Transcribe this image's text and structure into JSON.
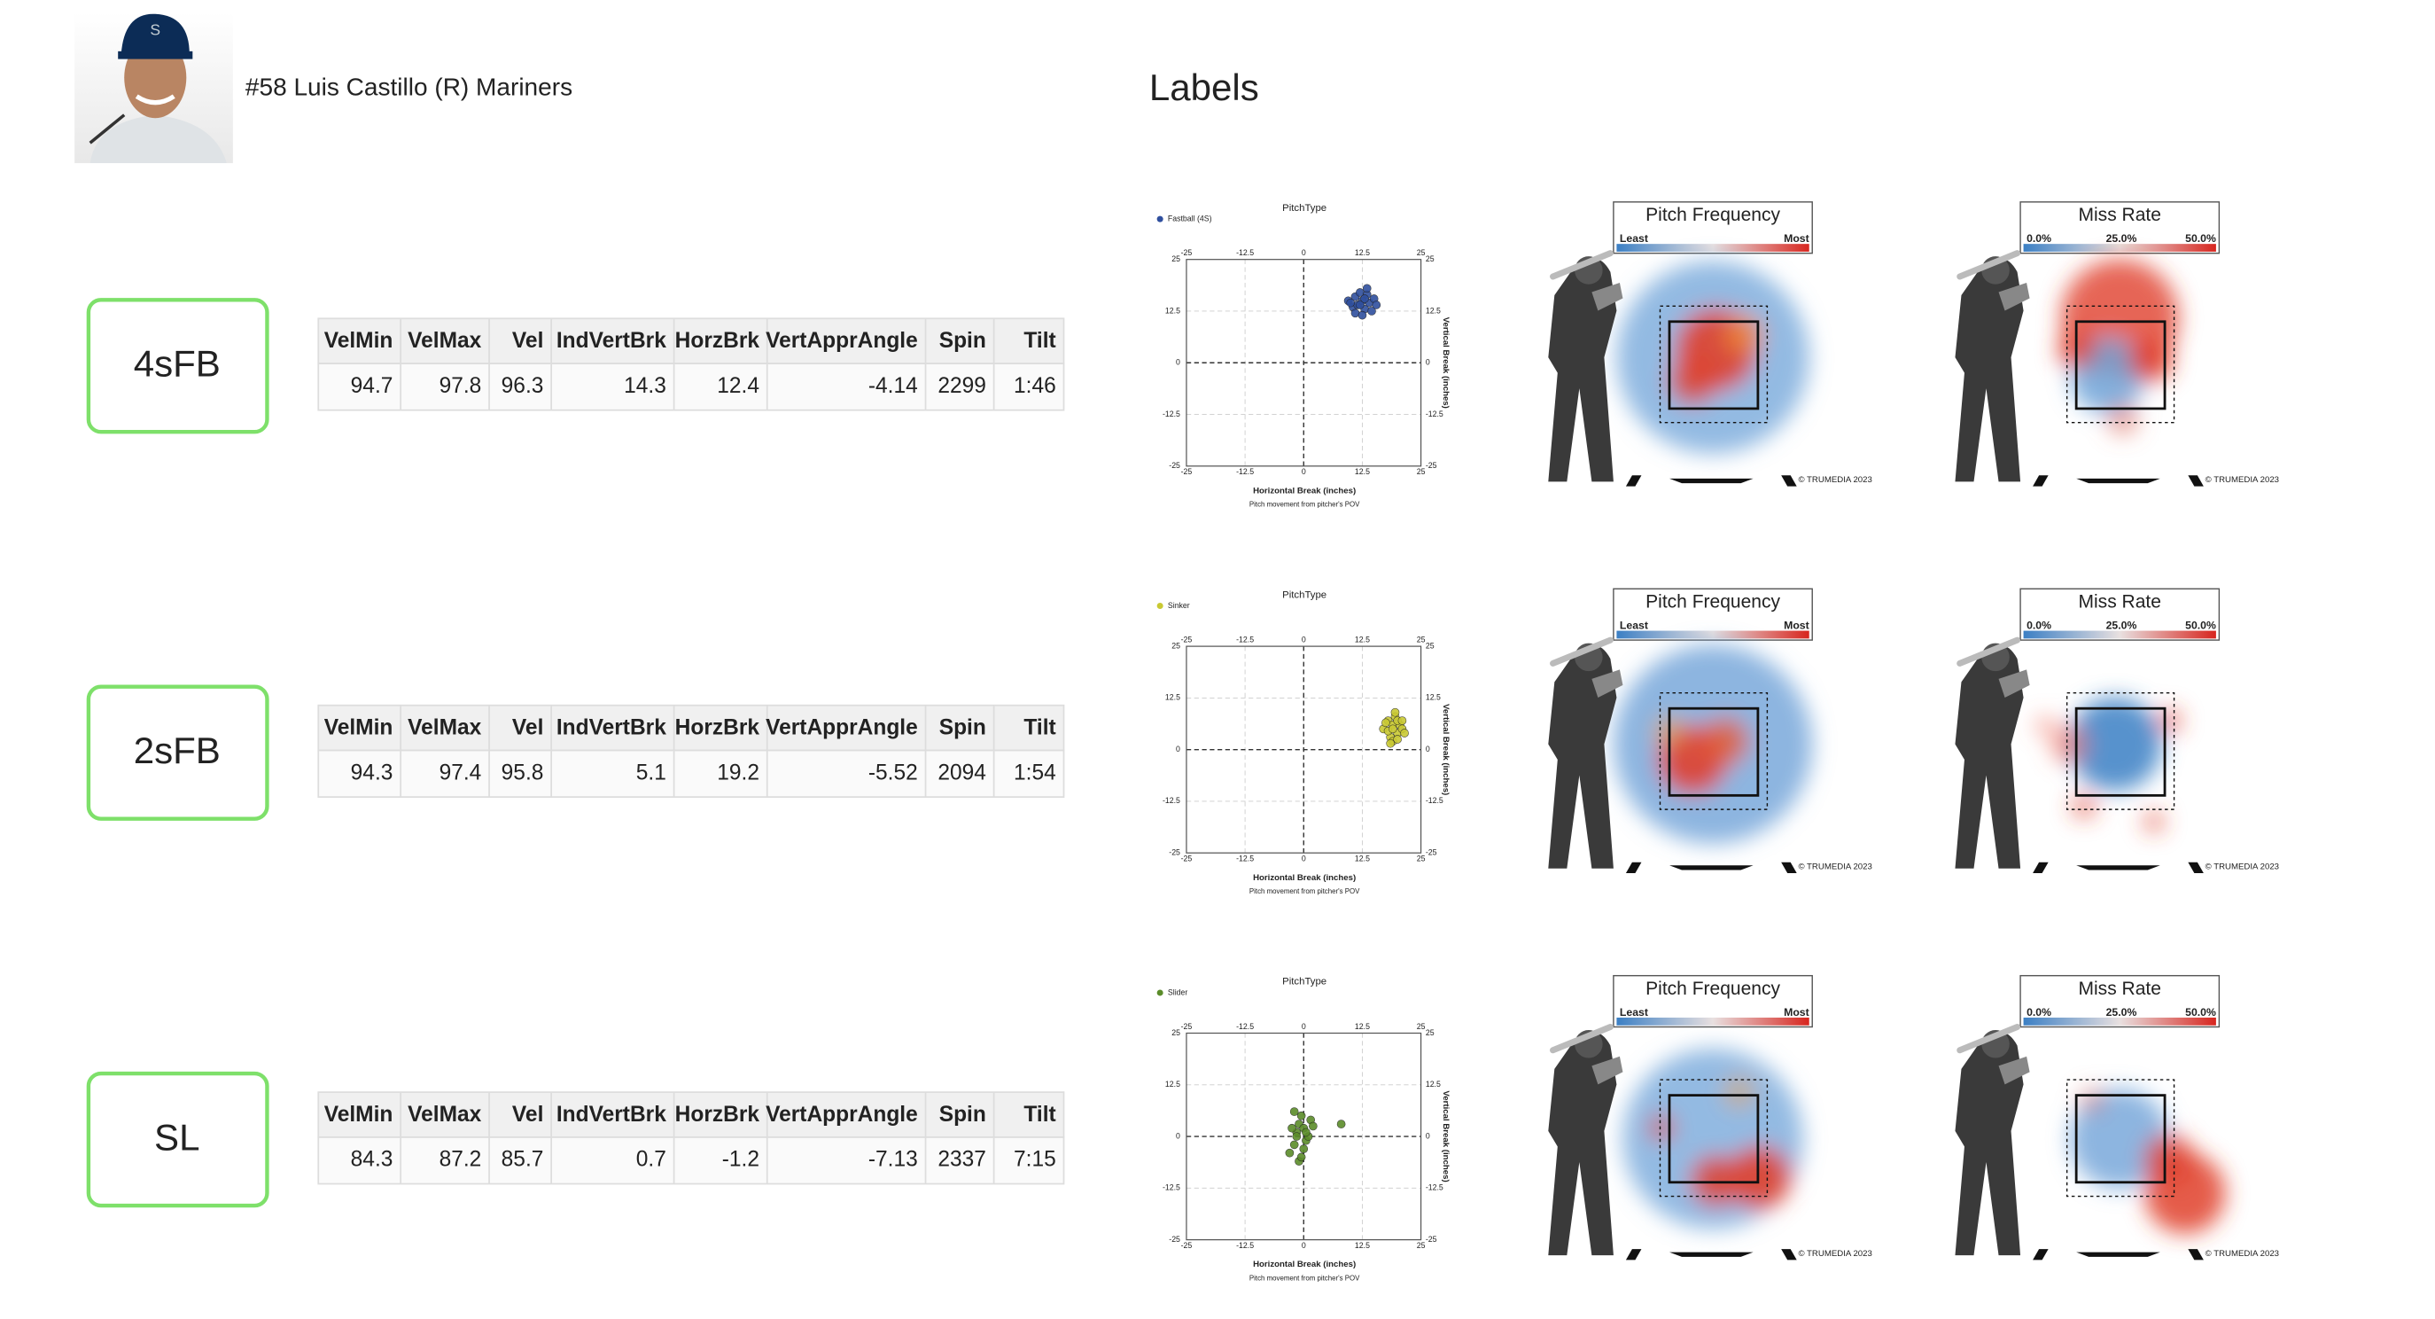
{
  "header": {
    "player": "#58 Luis Castillo (R) Mariners",
    "section_title": "Labels"
  },
  "table_columns": [
    "VelMin",
    "VelMax",
    "Vel",
    "IndVertBrk",
    "HorzBrk",
    "VertApprAngle",
    "Spin",
    "Tilt"
  ],
  "scatter_axes": {
    "title": "PitchType",
    "xlabel": "Horizontal Break (inches)",
    "ylabel": "Vertical Break (inches)",
    "note": "Pitch movement from pitcher's POV",
    "xlim": [
      -25,
      25
    ],
    "ylim": [
      -25,
      25
    ],
    "xticks": [
      -25,
      -12.5,
      0,
      12.5,
      25
    ],
    "yticks": [
      -25,
      -12.5,
      0,
      12.5,
      25
    ]
  },
  "heatmaps": [
    {
      "title": "Pitch Frequency",
      "scale_labels": [
        "Least",
        "Most"
      ]
    },
    {
      "title": "Miss Rate",
      "scale_labels": [
        "0.0%",
        "25.0%",
        "50.0%"
      ]
    }
  ],
  "copyright": "© TRUMEDIA 2023",
  "rows": [
    {
      "label": "4sFB",
      "values": [
        94.7,
        97.8,
        96.3,
        14.3,
        12.4,
        -4.14,
        2299,
        "1:46"
      ],
      "legend": "Fastball (4S)",
      "color": "#2f4f9e",
      "x": [
        9.5,
        10.5,
        11,
        11.5,
        12,
        12.5,
        13,
        13.5,
        14,
        14.5,
        15,
        11,
        12.5,
        13.5,
        10,
        15.5,
        12,
        13
      ],
      "y": [
        15,
        13.5,
        16,
        14,
        17,
        15,
        13,
        16.5,
        14.5,
        12.5,
        15.5,
        12,
        11.5,
        18,
        14.5,
        14,
        14,
        15.5
      ]
    },
    {
      "label": "2sFB",
      "values": [
        94.3,
        97.4,
        95.8,
        5.1,
        19.2,
        -5.52,
        2094,
        "1:54"
      ],
      "legend": "Sinker",
      "color": "#c9c933",
      "x": [
        17,
        18,
        18.5,
        19,
        19.5,
        20,
        20.5,
        21,
        18,
        19,
        20,
        21.5,
        17.5,
        19.5,
        20,
        18.5,
        19,
        21
      ],
      "y": [
        5,
        7,
        3,
        6,
        8,
        4,
        6,
        5,
        4.5,
        2,
        2.5,
        4,
        6.5,
        9,
        7,
        1.5,
        5,
        7
      ]
    },
    {
      "label": "SL",
      "values": [
        84.3,
        87.2,
        85.7,
        0.7,
        -1.2,
        -7.13,
        2337,
        "7:15"
      ],
      "legend": "Slider",
      "color": "#5b8c2a",
      "x": [
        -3,
        -2,
        -1.5,
        -1,
        -0.5,
        0,
        0.5,
        1,
        -2.5,
        -1,
        0,
        1.5,
        -2,
        -0.5,
        0.5,
        -1.5,
        2,
        8
      ],
      "y": [
        -4,
        -2,
        1,
        3,
        5,
        2,
        -1,
        0,
        2,
        -6,
        -3,
        4,
        6,
        -5,
        1,
        0,
        2.5,
        3
      ]
    }
  ]
}
